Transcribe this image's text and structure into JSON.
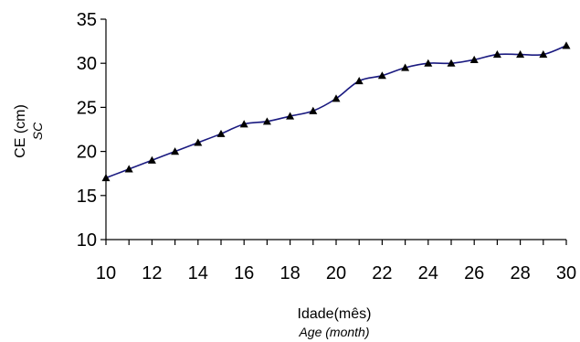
{
  "chart_data": {
    "type": "line",
    "x": [
      10,
      11,
      12,
      13,
      14,
      15,
      16,
      17,
      18,
      19,
      20,
      21,
      22,
      23,
      24,
      25,
      26,
      27,
      28,
      29,
      30
    ],
    "series": [
      {
        "values": [
          17,
          18,
          19,
          20,
          21,
          22,
          23.1,
          23.4,
          24,
          24.6,
          26,
          28,
          28.6,
          29.5,
          30,
          30,
          30.4,
          31,
          31,
          31,
          32
        ],
        "line_color": "#1a1a80",
        "marker": "triangle",
        "marker_color": "#000000"
      }
    ],
    "xlabel": "Idade(mês)",
    "xlabel_secondary": "Age (month)",
    "ylabel": "CE (cm)",
    "ylabel_secondary": "SC",
    "xlim": [
      10,
      30
    ],
    "ylim": [
      10,
      35
    ],
    "xticks": [
      "10",
      "12",
      "14",
      "16",
      "18",
      "20",
      "22",
      "24",
      "26",
      "28",
      "30"
    ],
    "yticks": [
      "10",
      "15",
      "20",
      "25",
      "30",
      "35"
    ],
    "grid": false,
    "legend": "none"
  }
}
